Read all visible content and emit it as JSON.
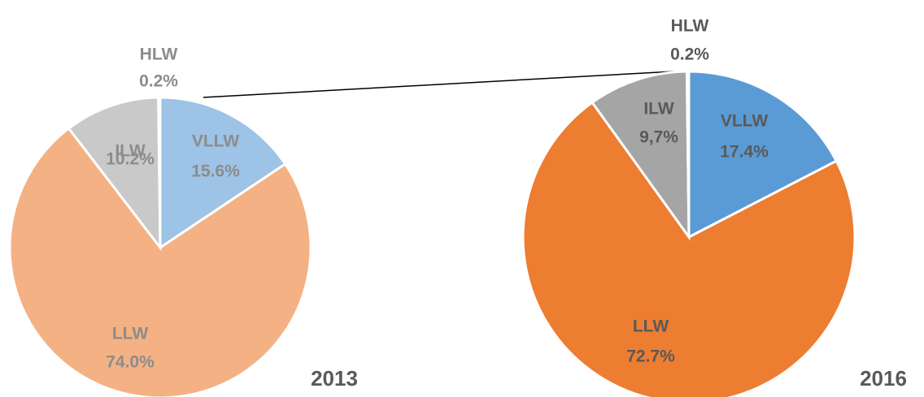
{
  "chart_data": [
    {
      "type": "pie",
      "title": "2013",
      "categories": [
        "VLLW",
        "LLW",
        "ILW",
        "HLW"
      ],
      "values": [
        15.6,
        74.0,
        10.2,
        0.2
      ],
      "value_labels": [
        "15.6%",
        "74.0%",
        "10.2%",
        "0.2%"
      ],
      "colors": [
        "#9dc3e6",
        "#f4b183",
        "#c9c9c9",
        "#7f7f7f"
      ]
    },
    {
      "type": "pie",
      "title": "2016",
      "categories": [
        "VLLW",
        "LLW",
        "ILW",
        "HLW"
      ],
      "values": [
        17.4,
        72.7,
        9.7,
        0.2
      ],
      "value_labels": [
        "17.4%",
        "72.7%",
        "9,7%",
        "0.2%"
      ],
      "colors": [
        "#5b9bd5",
        "#ed7d31",
        "#a5a5a5",
        "#404040"
      ]
    }
  ]
}
